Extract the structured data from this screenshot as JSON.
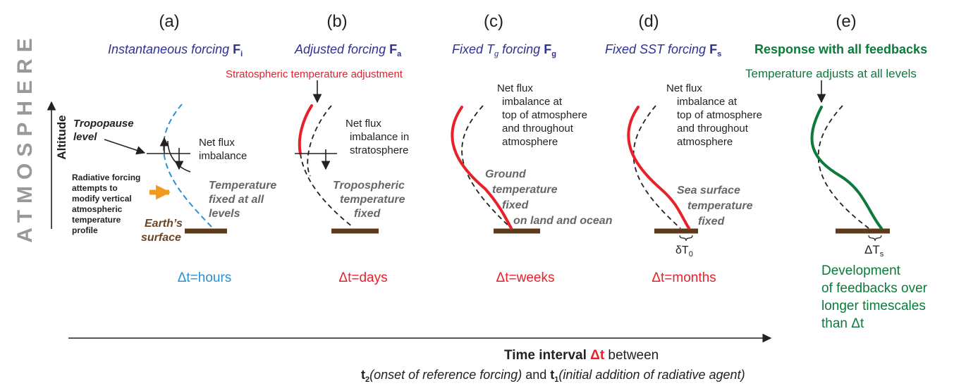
{
  "side": {
    "title": "ATMOSPHERE",
    "axis": "Altitude"
  },
  "panels": [
    {
      "label": "(a)",
      "title": [
        "Instantaneous forcing ",
        "F",
        "i"
      ],
      "tropopause": [
        "Tropopause",
        "level"
      ],
      "net_flux": [
        "Net flux",
        "imbalance"
      ],
      "forcing_note": [
        "Radiative forcing",
        "attempts to",
        "modify vertical",
        "atmospheric",
        "temperature",
        "profile"
      ],
      "fixed_note": [
        "Temperature",
        "fixed at all",
        "levels"
      ],
      "surface": [
        "Earth’s",
        "surface"
      ],
      "interval": "Δt=hours"
    },
    {
      "label": "(b)",
      "title": [
        "Adjusted forcing ",
        "F",
        "a"
      ],
      "adjust_note": "Stratospheric temperature adjustment",
      "net_flux": [
        "Net flux",
        "imbalance in",
        "stratosphere"
      ],
      "fixed_note": [
        "Tropospheric",
        "temperature",
        "fixed"
      ],
      "interval": "Δt=days"
    },
    {
      "label": "(c)",
      "title": [
        "Fixed ",
        "T",
        "g",
        " forcing ",
        "F",
        "g"
      ],
      "net_flux": [
        "Net flux",
        "imbalance at",
        "top of atmosphere",
        "and throughout",
        "atmosphere"
      ],
      "fixed_note": [
        "Ground",
        "temperature",
        "fixed",
        "on land and ocean"
      ],
      "interval": "Δt=weeks"
    },
    {
      "label": "(d)",
      "title": [
        "Fixed SST forcing ",
        "F",
        "s"
      ],
      "net_flux": [
        "Net flux",
        "imbalance at",
        "top of atmosphere",
        "and throughout",
        "atmosphere"
      ],
      "fixed_note": [
        "Sea surface",
        "temperature",
        "fixed"
      ],
      "delta": [
        "δT",
        "0"
      ],
      "interval": "Δt=months"
    },
    {
      "label": "(e)",
      "title": "Response with all feedbacks",
      "adjust_note": "Temperature adjusts at all levels",
      "delta": [
        "ΔT",
        "s"
      ],
      "feedback_note": [
        "Development",
        "of feedbacks over",
        "longer timescales",
        "than Δt"
      ]
    }
  ],
  "time_axis": {
    "line1": [
      "Time interval ",
      "Δt",
      " between"
    ],
    "line2": [
      "t",
      "2",
      "(onset of reference forcing)",
      " and ",
      "t",
      "1",
      "(initial addition of radiative agent)"
    ]
  }
}
